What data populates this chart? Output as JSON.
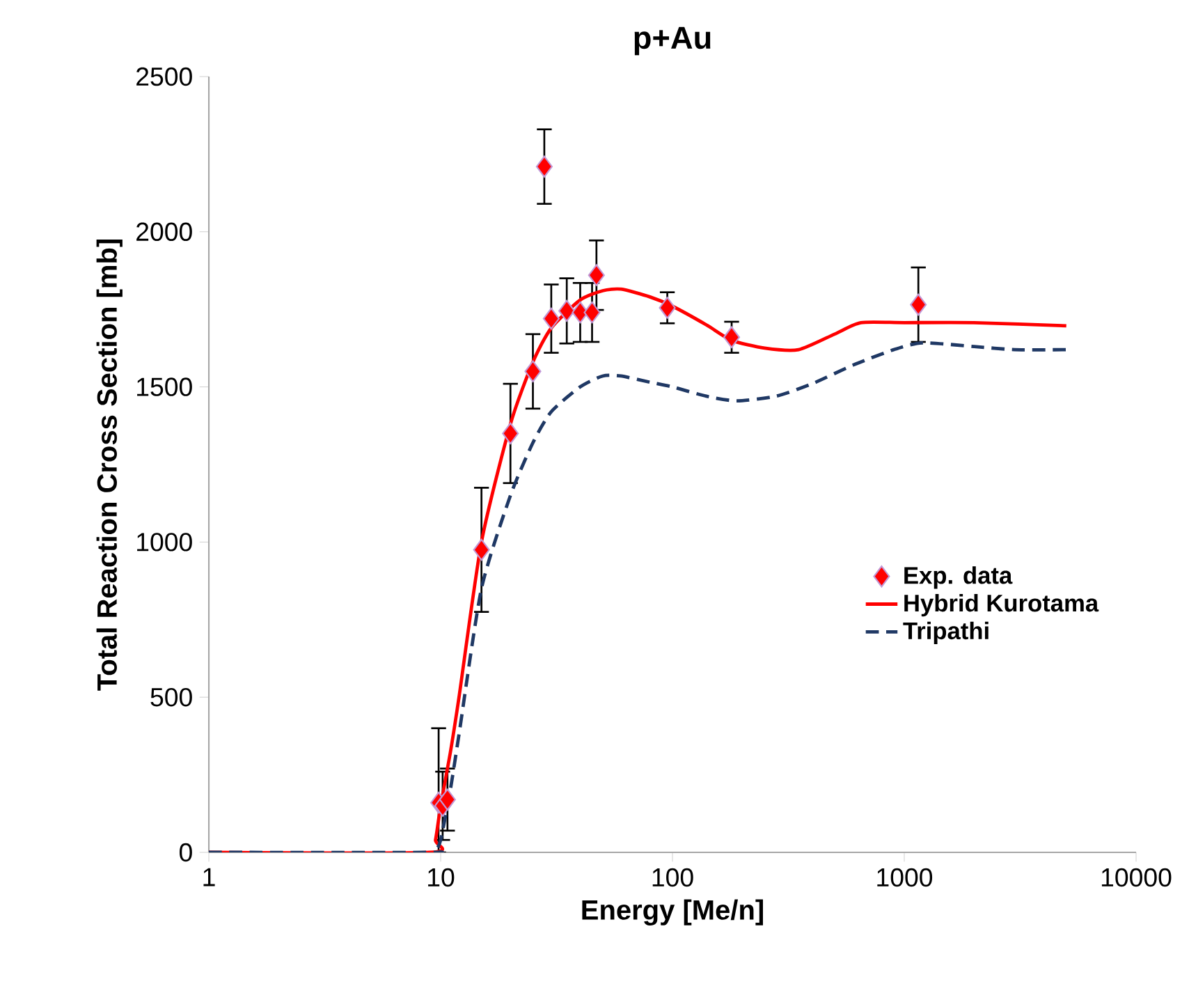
{
  "chart_data": {
    "type": "line",
    "title": "p+Au",
    "xlabel": "Energy [Me/n]",
    "ylabel": "Total Reaction Cross Section [mb]",
    "log": "x",
    "xlim": [
      1,
      10000
    ],
    "xticks": [
      1,
      10,
      100,
      1000,
      10000
    ],
    "ylim": [
      0,
      2500
    ],
    "yticks": [
      0,
      500,
      1000,
      1500,
      2000,
      2500
    ],
    "grid": false,
    "legend": "right",
    "series": [
      {
        "name": "Exp. data",
        "type": "scatter",
        "marker": "diamond",
        "color": "#ff0000",
        "x": [
          9.8,
          10.2,
          10.7,
          15,
          20,
          25,
          28,
          30,
          35,
          40,
          45,
          47,
          95,
          180,
          1150
        ],
        "values": [
          160,
          150,
          170,
          975,
          1350,
          1550,
          2210,
          1720,
          1745,
          1740,
          1740,
          1860,
          1755,
          1660,
          1765
        ],
        "errors": [
          [
            0,
            400
          ],
          110,
          100,
          200,
          160,
          120,
          120,
          110,
          105,
          95,
          95,
          112,
          50,
          50,
          120
        ]
      },
      {
        "name": "Hybrid Kurotama",
        "line_style": "solid",
        "color": "#ff0000",
        "x": [
          1,
          9,
          9.5,
          10,
          11,
          12,
          15,
          20,
          25,
          30,
          40,
          50,
          60,
          80,
          100,
          140,
          180,
          250,
          350,
          500,
          650,
          1000,
          2000,
          5000
        ],
        "values": [
          0,
          0,
          40,
          150,
          320,
          500,
          1000,
          1380,
          1580,
          1690,
          1780,
          1810,
          1815,
          1790,
          1760,
          1700,
          1650,
          1625,
          1620,
          1670,
          1707,
          1707,
          1707,
          1697
        ]
      },
      {
        "name": "Tripathi",
        "line_style": "dashed",
        "color": "#1f3864",
        "x": [
          1,
          9,
          9.5,
          10,
          11,
          12,
          15,
          20,
          25,
          30,
          40,
          50,
          60,
          80,
          100,
          140,
          190,
          280,
          400,
          600,
          900,
          1200,
          2000,
          3000,
          5000
        ],
        "values": [
          0,
          0,
          5,
          40,
          200,
          380,
          850,
          1150,
          1320,
          1420,
          1500,
          1535,
          1535,
          1515,
          1500,
          1470,
          1455,
          1470,
          1510,
          1570,
          1620,
          1642,
          1630,
          1620,
          1620
        ]
      }
    ]
  }
}
